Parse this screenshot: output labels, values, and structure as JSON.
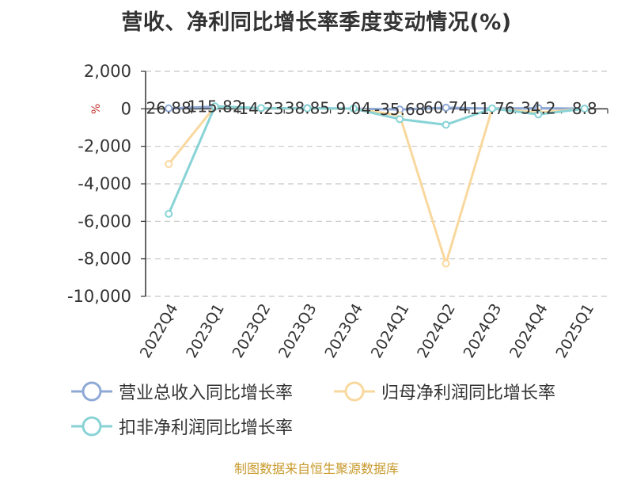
{
  "title": "营收、净利同比增长率季度变动情况(%)",
  "source": "制图数据来自恒生聚源数据库",
  "chart_data": {
    "type": "line",
    "unit": "%",
    "categories": [
      "2022Q4",
      "2023Q1",
      "2023Q2",
      "2023Q3",
      "2023Q4",
      "2024Q1",
      "2024Q2",
      "2024Q3",
      "2024Q4",
      "2025Q1"
    ],
    "ylim": [
      -10000,
      2000
    ],
    "yticks": [
      2000,
      0,
      -2000,
      -4000,
      -6000,
      -8000,
      -10000
    ],
    "ytick_labels": [
      "2,000",
      "0",
      "-2,000",
      "-4,000",
      "-6,000",
      "-8,000",
      "-10,000"
    ],
    "grid": true,
    "legend_position": "bottom",
    "series": [
      {
        "name": "营业总收入同比增长率",
        "color": "#8fa9d6",
        "values": [
          26.88,
          115.82,
          14.23,
          38.85,
          9.04,
          -35.68,
          60.74,
          11.76,
          34.2,
          8.8
        ],
        "labels": [
          "26.88",
          "115.82",
          "14.23",
          "38.85",
          "9.04",
          "-35.68",
          "60.74",
          "11.76",
          "34.2",
          "8.8"
        ]
      },
      {
        "name": "归母净利润同比增长率",
        "color": "#f9d89e",
        "values": [
          -2950,
          120,
          30,
          20,
          10,
          -350,
          -8250,
          10,
          -200,
          5
        ]
      },
      {
        "name": "扣非净利润同比增长率",
        "color": "#88d3d6",
        "values": [
          -5600,
          130,
          40,
          25,
          15,
          -550,
          -850,
          20,
          -300,
          10
        ]
      }
    ]
  }
}
